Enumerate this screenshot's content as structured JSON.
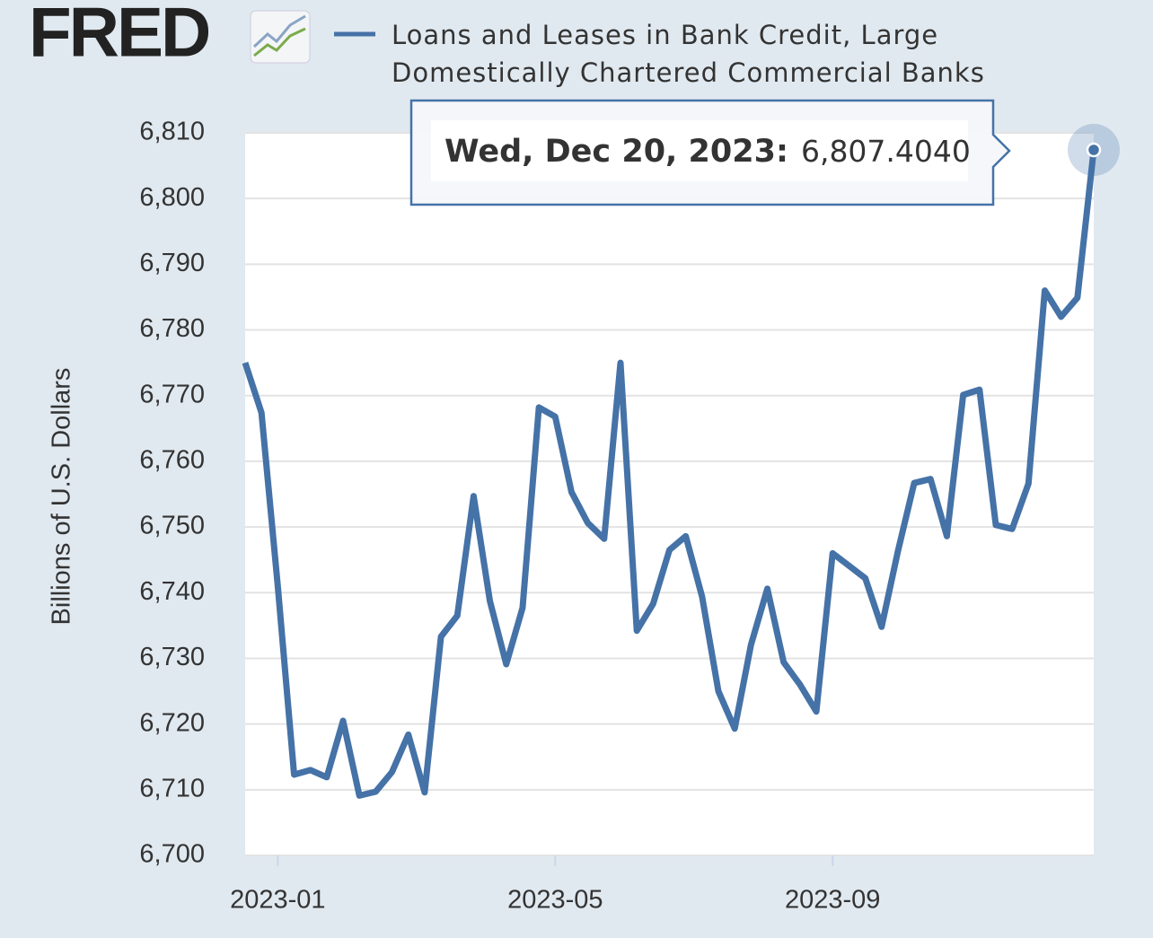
{
  "chart_data": {
    "type": "line",
    "logo": "FRED",
    "y_axis_label": "Billions of U.S. Dollars",
    "categories": [
      null,
      null,
      "2023-01",
      null,
      null,
      null,
      null,
      null,
      null,
      null,
      null,
      null,
      null,
      null,
      null,
      null,
      null,
      null,
      null,
      "2023-05",
      null,
      null,
      null,
      null,
      null,
      null,
      null,
      null,
      null,
      null,
      null,
      null,
      null,
      null,
      null,
      null,
      "2023-09",
      null,
      null,
      null,
      null,
      null,
      null,
      null,
      null,
      null,
      null,
      null,
      null,
      null,
      null,
      null,
      null
    ],
    "series": [
      {
        "name": "Loans and Leases in Bank Credit, Large Domestically Chartered Commercial Banks",
        "color": "#4572a7",
        "values": [
          6775,
          6767.4,
          6741,
          6712.3,
          6713,
          6711.9,
          6720.5,
          6709.1,
          6709.7,
          6712.7,
          6718.4,
          6709.6,
          6733.3,
          6736.5,
          6754.7,
          6738.7,
          6729.1,
          6737.7,
          6768.2,
          6766.8,
          6755.3,
          6750.6,
          6748.2,
          6775,
          6734.2,
          6738.3,
          6746.5,
          6748.6,
          6739.4,
          6725,
          6719.3,
          6732.1,
          6740.6,
          6729.4,
          6726,
          6721.9,
          6746,
          6744.1,
          6742.2,
          6734.8,
          6746.3,
          6756.7,
          6757.3,
          6748.6,
          6770.1,
          6770.9,
          6750.3,
          6749.7,
          6756.6,
          6786,
          6782,
          6784.9,
          6807.404
        ]
      }
    ],
    "ylim": [
      6700,
      6810
    ],
    "yticks": [
      {
        "value": 6700,
        "label": "6,700"
      },
      {
        "value": 6710,
        "label": "6,710"
      },
      {
        "value": 6720,
        "label": "6,720"
      },
      {
        "value": 6730,
        "label": "6,730"
      },
      {
        "value": 6740,
        "label": "6,740"
      },
      {
        "value": 6750,
        "label": "6,750"
      },
      {
        "value": 6760,
        "label": "6,760"
      },
      {
        "value": 6770,
        "label": "6,770"
      },
      {
        "value": 6780,
        "label": "6,780"
      },
      {
        "value": 6790,
        "label": "6,790"
      },
      {
        "value": 6800,
        "label": "6,800"
      },
      {
        "value": 6810,
        "label": "6,810"
      }
    ],
    "grid": true,
    "tooltip": {
      "date": "Wed, Dec 20, 2023:",
      "value": "6,807.4040"
    }
  }
}
